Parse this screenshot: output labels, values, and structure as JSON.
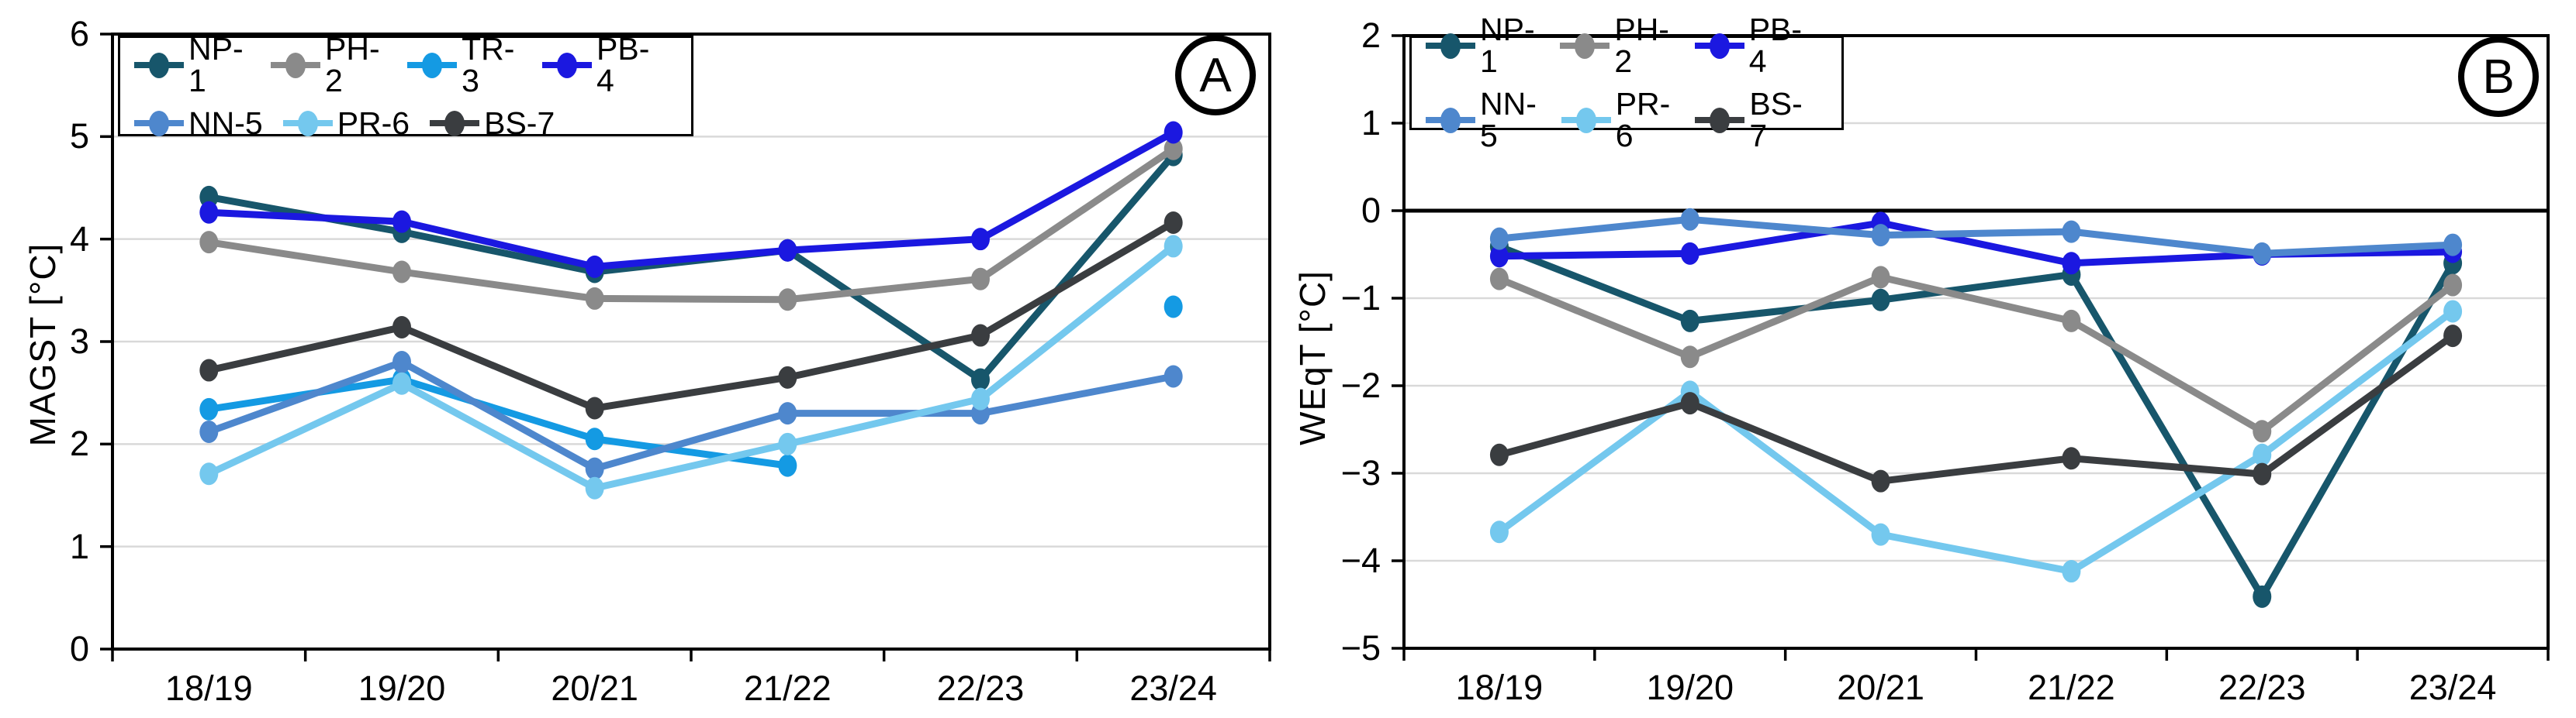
{
  "figure": {
    "background": "#ffffff",
    "grid_color": "#d9d9d9",
    "axis_color": "#000000"
  },
  "chart_data": [
    {
      "type": "line",
      "title": "A",
      "ylabel": "MAGST [°C]",
      "xlabel": "",
      "ylim": [
        0,
        6
      ],
      "yticks": [
        "0",
        "1",
        "2",
        "3",
        "4",
        "5",
        "6"
      ],
      "ytick_values": [
        0,
        1,
        2,
        3,
        4,
        5,
        6
      ],
      "gridline_values": [
        1,
        2,
        3,
        4,
        5
      ],
      "zero_line": false,
      "grid": true,
      "legend_position": "top-left",
      "legend_rows": [
        [
          "NP-1",
          "PH-2",
          "TR-3",
          "PB-4"
        ],
        [
          "NN-5",
          "PR-6",
          "BS-7"
        ]
      ],
      "categories": [
        "18/19",
        "19/20",
        "20/21",
        "21/22",
        "22/23",
        "23/24"
      ],
      "series": [
        {
          "name": "NP-1",
          "color": "#17566b",
          "values": [
            4.41,
            4.07,
            3.68,
            3.89,
            2.63,
            4.82
          ]
        },
        {
          "name": "PH-2",
          "color": "#8a8a8a",
          "values": [
            3.97,
            3.68,
            3.42,
            3.41,
            3.61,
            4.88
          ]
        },
        {
          "name": "TR-3",
          "color": "#149ae3",
          "values": [
            2.34,
            2.63,
            2.05,
            1.79,
            null,
            3.34
          ]
        },
        {
          "name": "PB-4",
          "color": "#1b18e0",
          "values": [
            4.26,
            4.17,
            3.73,
            3.89,
            4.0,
            5.04
          ]
        },
        {
          "name": "NN-5",
          "color": "#4e87cd",
          "values": [
            2.12,
            2.8,
            1.76,
            2.3,
            2.3,
            2.66
          ]
        },
        {
          "name": "PR-6",
          "color": "#74c8ee",
          "values": [
            1.71,
            2.59,
            1.57,
            2.0,
            2.44,
            3.93
          ]
        },
        {
          "name": "BS-7",
          "color": "#3a3d40",
          "values": [
            2.72,
            3.14,
            2.35,
            2.65,
            3.06,
            4.16
          ]
        }
      ]
    },
    {
      "type": "line",
      "title": "B",
      "ylabel": "WEqT [°C]",
      "xlabel": "",
      "ylim": [
        -5,
        2
      ],
      "yticks": [
        "2",
        "1",
        "0",
        "−1",
        "−2",
        "−3",
        "−4",
        "−5"
      ],
      "ytick_values": [
        2,
        1,
        0,
        -1,
        -2,
        -3,
        -4,
        -5
      ],
      "gridline_values": [
        1,
        -1,
        -2,
        -3,
        -4
      ],
      "zero_line": true,
      "grid": true,
      "legend_position": "top-left",
      "legend_rows": [
        [
          "NP-1",
          "PH-2",
          "PB-4"
        ],
        [
          "NN-5",
          "PR-6",
          "BS-7"
        ]
      ],
      "categories": [
        "18/19",
        "19/20",
        "20/21",
        "21/22",
        "22/23",
        "23/24"
      ],
      "series": [
        {
          "name": "NP-1",
          "color": "#17566b",
          "values": [
            -0.41,
            -1.26,
            -1.02,
            -0.73,
            -4.41,
            -0.6
          ]
        },
        {
          "name": "PH-2",
          "color": "#8a8a8a",
          "values": [
            -0.78,
            -1.67,
            -0.76,
            -1.26,
            -2.52,
            -0.85
          ]
        },
        {
          "name": "PB-4",
          "color": "#1b18e0",
          "values": [
            -0.52,
            -0.49,
            -0.14,
            -0.6,
            -0.5,
            -0.47
          ]
        },
        {
          "name": "NN-5",
          "color": "#4e87cd",
          "values": [
            -0.32,
            -0.1,
            -0.28,
            -0.24,
            -0.49,
            -0.39
          ]
        },
        {
          "name": "PR-6",
          "color": "#74c8ee",
          "values": [
            -3.67,
            -2.07,
            -3.7,
            -4.12,
            -2.79,
            -1.15
          ]
        },
        {
          "name": "BS-7",
          "color": "#3a3d40",
          "values": [
            -2.79,
            -2.2,
            -3.09,
            -2.83,
            -3.01,
            -1.43
          ]
        }
      ]
    }
  ]
}
